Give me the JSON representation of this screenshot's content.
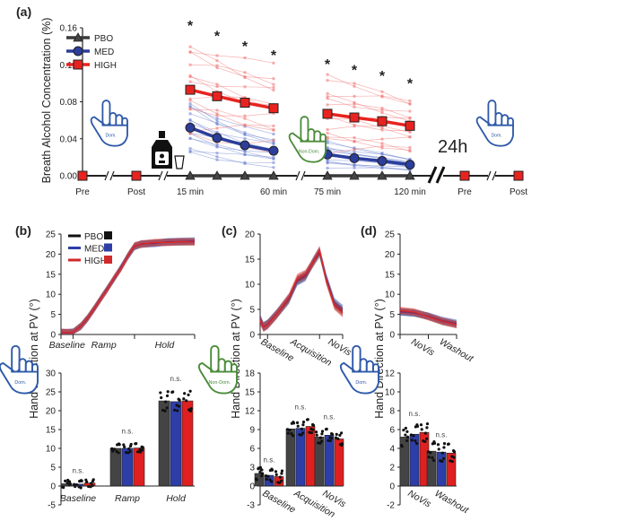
{
  "colors": {
    "PBO": "#3a3a3a",
    "MED": "#2b3e9c",
    "HIGH": "#e8231f",
    "dom_hand": "#2f5aa8",
    "nondom_hand": "#4a8c3a"
  },
  "chart_data": [
    {
      "panel": "(a)",
      "type": "line",
      "ylabel": "Breath Alcohol Concentration (%)",
      "ylim": [
        0,
        0.16
      ],
      "yticks": [
        "0.00",
        "0.04",
        "0.08",
        "0.12",
        "0.16"
      ],
      "timepoints": [
        "Pre",
        "Post",
        "15 min",
        "",
        "",
        "60 min",
        "75 min",
        "",
        "",
        "120 min",
        "Pre",
        "Post"
      ],
      "series": [
        {
          "name": "PBO",
          "marker": "triangle",
          "values": [
            null,
            null,
            0,
            0,
            0,
            0,
            0,
            0,
            0,
            0,
            null,
            null
          ]
        },
        {
          "name": "MED",
          "marker": "circle",
          "values": [
            null,
            null,
            0.052,
            0.041,
            0.033,
            0.027,
            0.023,
            0.019,
            0.016,
            0.012,
            null,
            null
          ]
        },
        {
          "name": "HIGH",
          "marker": "square",
          "values": [
            0,
            0,
            0.093,
            0.086,
            0.079,
            0.073,
            0.067,
            0.063,
            0.059,
            0.054,
            0,
            0
          ]
        }
      ],
      "significance_marker": "*",
      "significant_timepoints": [
        2,
        3,
        4,
        5,
        6,
        7,
        8,
        9
      ],
      "annotation": "24h",
      "hand_labels": [
        "Dom.",
        "Non-Dom.",
        "Dom."
      ],
      "legend": [
        "PBO",
        "MED",
        "HIGH"
      ],
      "legend_position": "top-left"
    },
    {
      "panel": "(b)",
      "ylabel": "Hand Direction at PV (°)",
      "hand_label": "Dom.",
      "legend": [
        "PBO",
        "MED",
        "HIGH"
      ],
      "top": {
        "type": "line",
        "ylim": [
          0,
          25
        ],
        "yticks": [
          "0",
          "5",
          "10",
          "15",
          "20",
          "25"
        ],
        "phases": [
          "Baseline",
          "Ramp",
          "Hold"
        ],
        "phase_bounds": [
          0,
          9,
          55,
          100
        ],
        "x": [
          0,
          5,
          9,
          15,
          20,
          25,
          30,
          35,
          40,
          45,
          50,
          55,
          60,
          70,
          80,
          90,
          100
        ],
        "series": [
          {
            "name": "PBO",
            "values": [
              0.5,
              0.4,
              0.5,
              2.2,
              4.2,
              6.6,
              9.1,
              11.6,
              14.1,
              16.6,
              19.6,
              22.0,
              22.4,
              22.8,
              23.0,
              23.0,
              23.1
            ]
          },
          {
            "name": "MED",
            "values": [
              0.4,
              0.5,
              0.6,
              2.0,
              4.0,
              6.4,
              9.0,
              11.5,
              14.0,
              16.8,
              19.4,
              21.8,
              22.6,
              22.6,
              23.1,
              23.2,
              23.3
            ]
          },
          {
            "name": "HIGH",
            "values": [
              0.6,
              0.5,
              0.5,
              2.1,
              4.1,
              6.5,
              9.0,
              11.4,
              14.2,
              16.5,
              19.5,
              22.1,
              22.5,
              22.9,
              22.9,
              23.1,
              23.0
            ]
          }
        ]
      },
      "bottom": {
        "type": "bar",
        "ylim": [
          -5,
          30
        ],
        "yticks": [
          "-5",
          "0",
          "5",
          "10",
          "15",
          "20",
          "25",
          "30"
        ],
        "categories": [
          "Baseline",
          "Ramp",
          "Hold"
        ],
        "series": [
          {
            "name": "PBO",
            "values": [
              0.6,
              10.0,
              22.6
            ]
          },
          {
            "name": "MED",
            "values": [
              0.5,
              10.0,
              22.4
            ]
          },
          {
            "name": "HIGH",
            "values": [
              0.8,
              10.1,
              22.6
            ]
          }
        ],
        "significance": [
          "n.s.",
          "n.s.",
          "n.s."
        ]
      }
    },
    {
      "panel": "(c)",
      "ylabel": "Hand Direction at PV (°)",
      "hand_label": "Non-Dom.",
      "top": {
        "type": "line",
        "ylim": [
          0,
          20
        ],
        "yticks": [
          "0",
          "5",
          "10",
          "15",
          "20"
        ],
        "phases": [
          "Baseline",
          "Acquisition",
          "NoVis"
        ],
        "phase_bounds": [
          0,
          9,
          72,
          100
        ],
        "x": [
          0,
          4,
          9,
          20,
          35,
          45,
          55,
          65,
          72,
          80,
          90,
          100
        ],
        "series": [
          {
            "name": "PBO",
            "values": [
              3.0,
              1.6,
              2.0,
              4.0,
              7.0,
              10.8,
              11.8,
              14.5,
              16.2,
              11.0,
              6.0,
              4.6
            ]
          },
          {
            "name": "MED",
            "values": [
              3.2,
              1.5,
              2.1,
              4.1,
              7.2,
              10.6,
              11.5,
              14.8,
              16.6,
              11.4,
              6.4,
              5.0
            ]
          },
          {
            "name": "HIGH",
            "values": [
              2.8,
              1.4,
              1.9,
              4.0,
              7.4,
              11.2,
              12.0,
              14.6,
              16.8,
              10.8,
              5.8,
              4.3
            ]
          }
        ]
      },
      "bottom": {
        "type": "bar",
        "ylim": [
          -3,
          18
        ],
        "yticks": [
          "-3",
          "0",
          "3",
          "6",
          "9",
          "12",
          "15",
          "18"
        ],
        "categories": [
          "Baseline",
          "Acquisition",
          "NoVis"
        ],
        "series": [
          {
            "name": "PBO",
            "values": [
              2.0,
              9.1,
              7.8
            ]
          },
          {
            "name": "MED",
            "values": [
              1.7,
              9.2,
              8.1
            ]
          },
          {
            "name": "HIGH",
            "values": [
              1.5,
              9.5,
              7.5
            ]
          }
        ],
        "significance": [
          "n.s.",
          "n.s.",
          "n.s."
        ]
      }
    },
    {
      "panel": "(d)",
      "ylabel": "Hand Direction at PV (°)",
      "hand_label": "Dom.",
      "top": {
        "type": "line",
        "ylim": [
          0,
          25
        ],
        "yticks": [
          "0",
          "5",
          "10",
          "15",
          "20",
          "25"
        ],
        "phases": [
          "NoVis",
          "Washout"
        ],
        "phase_bounds": [
          0,
          50,
          100
        ],
        "x": [
          0,
          25,
          50,
          75,
          100
        ],
        "series": [
          {
            "name": "PBO",
            "values": [
              5.7,
              5.4,
              4.5,
              3.2,
              2.5
            ]
          },
          {
            "name": "MED",
            "values": [
              5.6,
              5.3,
              4.6,
              3.5,
              2.8
            ]
          },
          {
            "name": "HIGH",
            "values": [
              6.0,
              5.6,
              4.4,
              3.3,
              2.4
            ]
          }
        ]
      },
      "bottom": {
        "type": "bar",
        "ylim": [
          -2,
          12
        ],
        "yticks": [
          "-2",
          "0",
          "2",
          "4",
          "6",
          "8",
          "10",
          "12"
        ],
        "categories": [
          "NoVis",
          "Washout"
        ],
        "series": [
          {
            "name": "PBO",
            "values": [
              5.2,
              3.7
            ]
          },
          {
            "name": "MED",
            "values": [
              5.5,
              3.6
            ]
          },
          {
            "name": "HIGH",
            "values": [
              5.7,
              3.5
            ]
          }
        ],
        "significance": [
          "n.s.",
          "n.s."
        ]
      }
    }
  ]
}
